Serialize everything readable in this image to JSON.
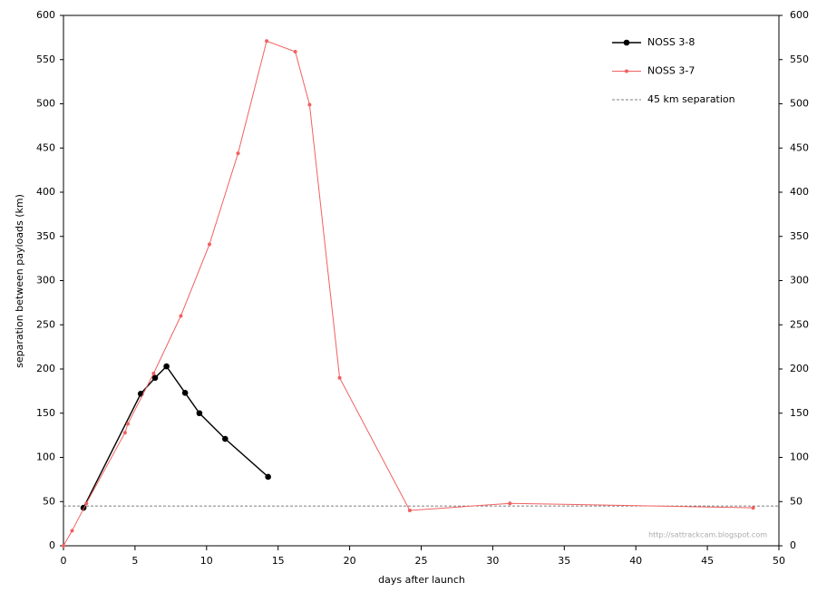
{
  "chart_data": {
    "type": "line",
    "x_label": "days after launch",
    "y_label": "separation between payloads (km)",
    "xlim": [
      0,
      50
    ],
    "xticks": [
      0,
      5,
      10,
      15,
      20,
      25,
      30,
      35,
      40,
      45,
      50
    ],
    "ylim": [
      0,
      600
    ],
    "yticks": [
      0,
      50,
      100,
      150,
      200,
      250,
      300,
      350,
      400,
      450,
      500,
      550,
      600
    ],
    "y2lim": [
      0,
      600
    ],
    "y2ticks": [
      0,
      50,
      100,
      150,
      200,
      250,
      300,
      350,
      400,
      450,
      500,
      550,
      600
    ],
    "series": [
      {
        "name": "NOSS 3-8",
        "color": "#000000",
        "x": [
          1.4,
          5.4,
          6.4,
          7.2,
          8.5,
          9.5,
          11.3,
          14.3
        ],
        "values": [
          43,
          172,
          190,
          203,
          173,
          150,
          121,
          78
        ]
      },
      {
        "name": "NOSS 3-7",
        "color": "#f06060",
        "x": [
          0,
          0.6,
          1.6,
          4.3,
          4.5,
          6.3,
          8.2,
          10.2,
          12.2,
          14.2,
          16.2,
          17.2,
          19.3,
          24.2,
          31.2,
          48.2
        ],
        "values": [
          0,
          17,
          48,
          128,
          138,
          195,
          260,
          341,
          444,
          571,
          559,
          499,
          190,
          40,
          48,
          43
        ]
      }
    ],
    "reference_line": {
      "name": "45 km separation",
      "value": 45,
      "color": "#555555"
    },
    "watermark": "http://sattrackcam.blogspot.com"
  }
}
